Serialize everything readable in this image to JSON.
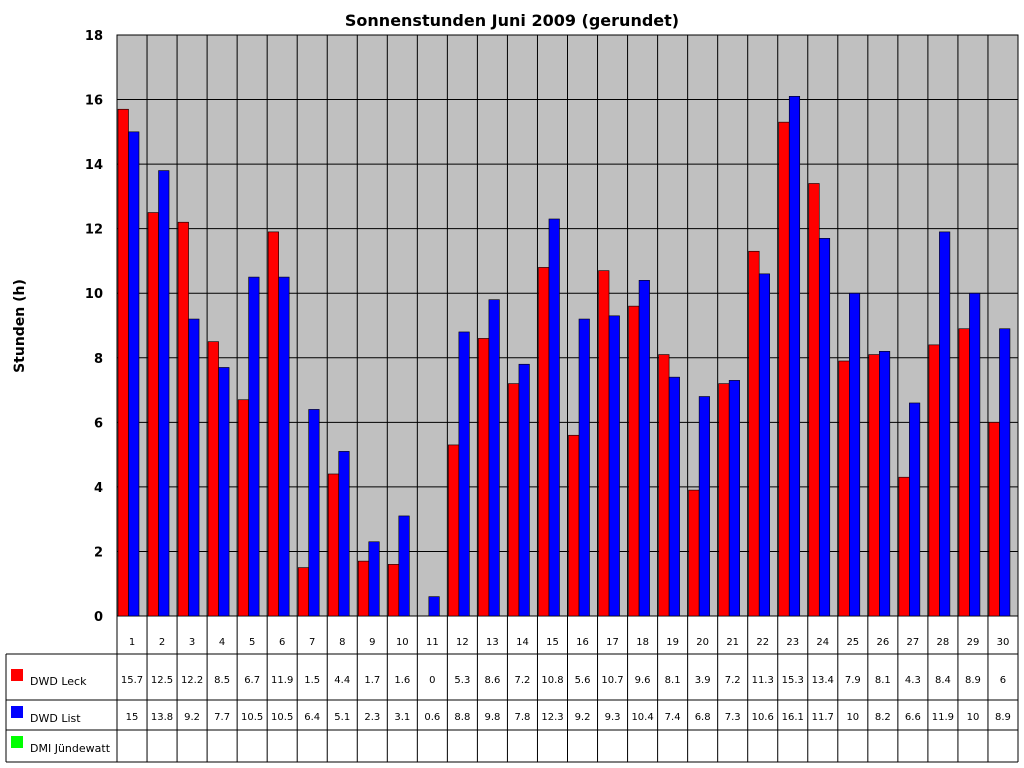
{
  "chart_data": {
    "type": "bar",
    "title": "Sonnenstunden Juni 2009 (gerundet)",
    "xlabel": "",
    "ylabel": "Stunden (h)",
    "ylim": [
      0,
      18
    ],
    "yticks": [
      0,
      2,
      4,
      6,
      8,
      10,
      12,
      14,
      16,
      18
    ],
    "grid": true,
    "legend": "bottom-left (data table)",
    "categories": [
      "1",
      "2",
      "3",
      "4",
      "5",
      "6",
      "7",
      "8",
      "9",
      "10",
      "11",
      "12",
      "13",
      "14",
      "15",
      "16",
      "17",
      "18",
      "19",
      "20",
      "21",
      "22",
      "23",
      "24",
      "25",
      "26",
      "27",
      "28",
      "29",
      "30"
    ],
    "series": [
      {
        "name": "DWD Leck",
        "color": "#ff0000",
        "values": [
          15.7,
          12.5,
          12.2,
          8.5,
          6.7,
          11.9,
          1.5,
          4.4,
          1.7,
          1.6,
          0,
          5.3,
          8.6,
          7.2,
          10.8,
          5.6,
          10.7,
          9.6,
          8.1,
          3.9,
          7.2,
          11.3,
          15.3,
          13.4,
          7.9,
          8.1,
          4.3,
          8.4,
          8.9,
          6
        ]
      },
      {
        "name": "DWD List",
        "color": "#0000ff",
        "values": [
          15,
          13.8,
          9.2,
          7.7,
          10.5,
          10.5,
          6.4,
          5.1,
          2.3,
          3.1,
          0.6,
          8.8,
          9.8,
          7.8,
          12.3,
          9.2,
          9.3,
          10.4,
          7.4,
          6.8,
          7.3,
          10.6,
          16.1,
          11.7,
          10,
          8.2,
          6.6,
          11.9,
          10,
          8.9
        ]
      },
      {
        "name": "DMI Jündewatt",
        "color": "#00ff00",
        "values": [
          null,
          null,
          null,
          null,
          null,
          null,
          null,
          null,
          null,
          null,
          null,
          null,
          null,
          null,
          null,
          null,
          null,
          null,
          null,
          null,
          null,
          null,
          null,
          null,
          null,
          null,
          null,
          null,
          null,
          null
        ]
      }
    ],
    "plot_background": "#c0c0c0"
  }
}
